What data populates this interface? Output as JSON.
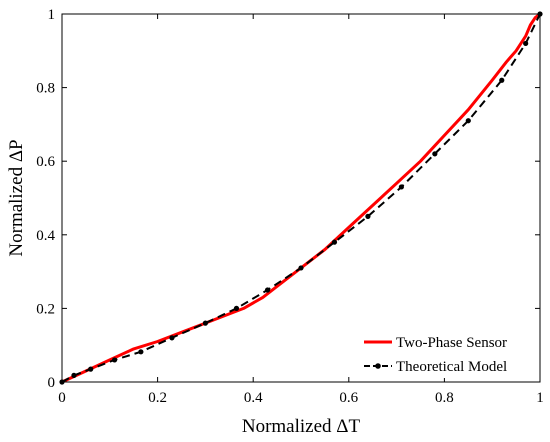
{
  "chart_data": {
    "type": "line",
    "xlabel": "Normalized ΔT",
    "ylabel": "Normalized ΔP",
    "xlim": [
      0,
      1
    ],
    "ylim": [
      0,
      1
    ],
    "x_ticks": [
      "0",
      "0.2",
      "0.4",
      "0.6",
      "0.8",
      "1"
    ],
    "y_ticks": [
      "0",
      "0.2",
      "0.4",
      "0.6",
      "0.8",
      "1"
    ],
    "legend_position": "bottom-right",
    "grid": false,
    "series": [
      {
        "name": "Two-Phase Sensor",
        "color": "#ff0000",
        "style": "solid",
        "x": [
          0,
          0.05,
          0.1,
          0.15,
          0.2,
          0.25,
          0.3,
          0.35,
          0.38,
          0.42,
          0.45,
          0.5,
          0.55,
          0.6,
          0.65,
          0.7,
          0.75,
          0.8,
          0.85,
          0.9,
          0.93,
          0.95,
          0.97,
          0.98,
          0.99,
          1.0
        ],
        "y": [
          0,
          0.03,
          0.06,
          0.09,
          0.11,
          0.135,
          0.16,
          0.185,
          0.2,
          0.23,
          0.26,
          0.31,
          0.36,
          0.42,
          0.48,
          0.54,
          0.6,
          0.67,
          0.74,
          0.82,
          0.87,
          0.9,
          0.94,
          0.97,
          0.99,
          1.0
        ]
      },
      {
        "name": "Theoretical Model",
        "color": "#000000",
        "style": "dashed",
        "markers": true,
        "x": [
          0,
          0.025,
          0.06,
          0.11,
          0.165,
          0.23,
          0.3,
          0.365,
          0.43,
          0.5,
          0.57,
          0.64,
          0.71,
          0.78,
          0.85,
          0.92,
          0.97,
          1.0
        ],
        "y": [
          0,
          0.018,
          0.035,
          0.06,
          0.082,
          0.12,
          0.16,
          0.2,
          0.25,
          0.31,
          0.38,
          0.45,
          0.53,
          0.62,
          0.71,
          0.82,
          0.92,
          1.0
        ]
      }
    ]
  }
}
